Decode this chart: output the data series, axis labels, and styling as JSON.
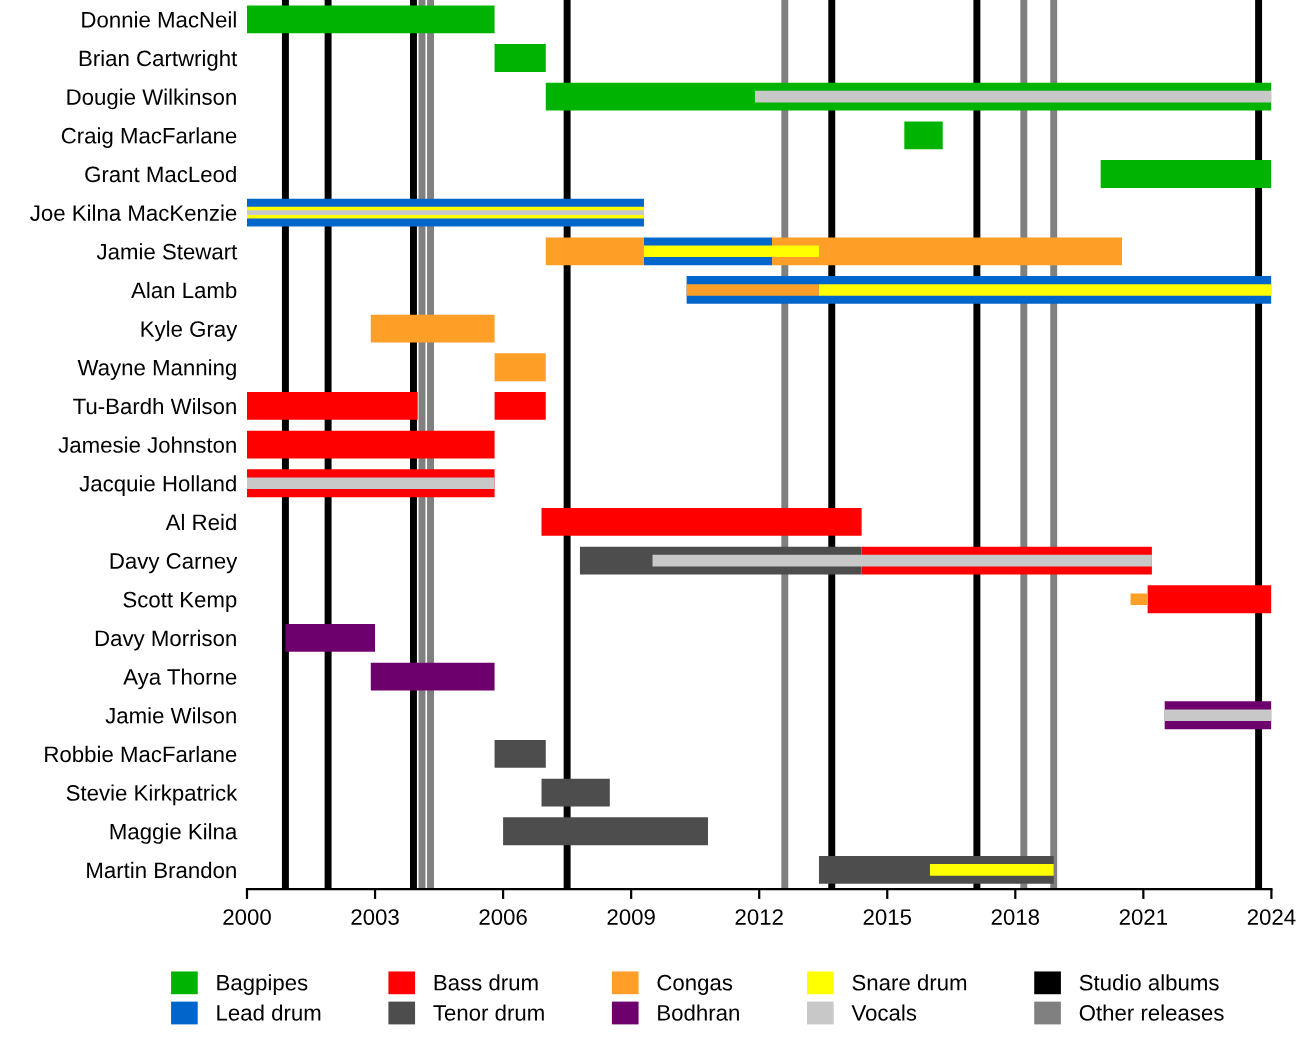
{
  "chart_data": {
    "type": "bar",
    "orientation": "horizontal",
    "legend": "bottom",
    "grid": false,
    "categories": [
      "Donnie MacNeil",
      "Brian Cartwright",
      "Dougie Wilkinson",
      "Craig MacFarlane",
      "Grant MacLeod",
      "Joe Kilna MacKenzie",
      "Jamie Stewart",
      "Alan Lamb",
      "Kyle Gray",
      "Wayne Manning",
      "Tu-Bardh Wilson",
      "Jamesie Johnston",
      "Jacquie Holland",
      "Al Reid",
      "Davy Carney",
      "Scott Kemp",
      "Davy Morrison",
      "Aya Thorne",
      "Jamie Wilson",
      "Robbie MacFarlane",
      "Stevie Kirkpatrick",
      "Maggie Kilna",
      "Martin Brandon"
    ],
    "xlim": [
      2000,
      2024
    ],
    "xticks": [
      2000,
      2003,
      2006,
      2009,
      2012,
      2015,
      2018,
      2021,
      2024
    ],
    "series": [
      {
        "name": "Bagpipes",
        "color": "#00b300",
        "base": [
          2000,
          2005.8,
          2007,
          2015.4,
          2020,
          null,
          null,
          null,
          null,
          null,
          null,
          null,
          null,
          null,
          null,
          null,
          null,
          null,
          null,
          null,
          null,
          null,
          null
        ],
        "values": [
          5.8,
          1.2,
          17,
          0.9,
          4,
          null,
          null,
          null,
          null,
          null,
          null,
          null,
          null,
          null,
          null,
          null,
          null,
          null,
          null,
          null,
          null,
          null,
          null
        ]
      },
      {
        "name": "Lead drum",
        "color": "#0066cc",
        "base": [
          null,
          null,
          null,
          null,
          null,
          2000,
          2009.3,
          2010.3,
          null,
          null,
          null,
          null,
          null,
          null,
          null,
          null,
          null,
          null,
          null,
          null,
          null,
          null,
          null
        ],
        "values": [
          null,
          null,
          null,
          null,
          null,
          9.3,
          3.0,
          13.7,
          null,
          null,
          null,
          null,
          null,
          null,
          null,
          null,
          null,
          null,
          null,
          null,
          null,
          null,
          null
        ]
      },
      {
        "name": "Bass drum",
        "color": "#ff0000",
        "base": [
          null,
          null,
          null,
          null,
          null,
          null,
          null,
          null,
          null,
          null,
          2000,
          2000,
          2000,
          2006.9,
          2014.4,
          2021.1,
          null,
          null,
          null,
          null,
          null,
          null,
          null
        ],
        "values": [
          null,
          null,
          null,
          null,
          null,
          null,
          null,
          null,
          null,
          null,
          4.0,
          5.8,
          5.8,
          7.5,
          6.8,
          2.9,
          null,
          null,
          null,
          null,
          null,
          null,
          null
        ]
      },
      {
        "name": "Tenor drum",
        "color": "#4d4d4d",
        "base": [
          null,
          null,
          null,
          null,
          null,
          null,
          null,
          null,
          null,
          null,
          null,
          null,
          null,
          null,
          2007.8,
          null,
          null,
          null,
          null,
          2005.8,
          2006.9,
          2006,
          2013.4
        ],
        "values": [
          null,
          null,
          null,
          null,
          null,
          null,
          null,
          null,
          null,
          null,
          null,
          null,
          null,
          null,
          6.6,
          null,
          null,
          null,
          null,
          1.2,
          1.6,
          4.8,
          5.5
        ]
      },
      {
        "name": "Congas",
        "color": "#ff9f27",
        "base": [
          null,
          null,
          null,
          null,
          null,
          null,
          2007,
          null,
          2002.9,
          2005.8,
          null,
          null,
          null,
          null,
          null,
          2020.7,
          null,
          null,
          null,
          null,
          null,
          null,
          null
        ],
        "values": [
          null,
          null,
          null,
          null,
          null,
          null,
          2.3,
          null,
          2.9,
          1.2,
          null,
          null,
          null,
          null,
          null,
          0.4,
          null,
          null,
          null,
          null,
          null,
          null,
          null
        ]
      },
      {
        "name": "Bodhran",
        "color": "#6e006e",
        "base": [
          null,
          null,
          null,
          null,
          null,
          null,
          null,
          null,
          null,
          null,
          null,
          null,
          null,
          null,
          null,
          null,
          2000.9,
          2002.9,
          2021.5,
          null,
          null,
          null,
          null
        ],
        "values": [
          null,
          null,
          null,
          null,
          null,
          null,
          null,
          null,
          null,
          null,
          null,
          null,
          null,
          null,
          null,
          null,
          2.1,
          2.9,
          2.5,
          null,
          null,
          null,
          null
        ]
      },
      {
        "color": "#ff0000",
        "base": [
          null,
          null,
          null,
          null,
          null,
          null,
          null,
          null,
          null,
          null,
          2005.8,
          null,
          null,
          null,
          null,
          null,
          null,
          null,
          null,
          null,
          null,
          null,
          null
        ],
        "values": [
          null,
          null,
          null,
          null,
          null,
          null,
          null,
          null,
          null,
          null,
          1.2,
          null,
          null,
          null,
          null,
          null,
          null,
          null,
          null,
          null,
          null,
          null,
          null
        ]
      },
      {
        "color": "#ff9f27",
        "base": [
          null,
          null,
          null,
          null,
          null,
          null,
          2012.3,
          null,
          null,
          null,
          null,
          null,
          null,
          null,
          null,
          null,
          null,
          null,
          null,
          null,
          null,
          null,
          null
        ],
        "values": [
          null,
          null,
          null,
          null,
          null,
          null,
          8.2,
          null,
          null,
          null,
          null,
          null,
          null,
          null,
          null,
          null,
          null,
          null,
          null,
          null,
          null,
          null,
          null
        ]
      },
      {
        "name": "Snare drum",
        "color": "#ffff00",
        "base": [
          null,
          null,
          null,
          null,
          null,
          2000,
          2009.3,
          2013.4,
          null,
          null,
          null,
          null,
          null,
          null,
          null,
          null,
          null,
          null,
          null,
          null,
          null,
          null,
          2016
        ],
        "values": [
          null,
          null,
          null,
          null,
          null,
          9.3,
          4.1,
          10.6,
          null,
          null,
          null,
          null,
          null,
          null,
          null,
          null,
          null,
          null,
          null,
          null,
          null,
          null,
          2.9
        ]
      },
      {
        "color": "#ff9f27",
        "base": [
          null,
          null,
          null,
          null,
          null,
          null,
          null,
          2010.3,
          null,
          null,
          null,
          null,
          null,
          null,
          null,
          null,
          null,
          null,
          null,
          null,
          null,
          null,
          null
        ],
        "values": [
          null,
          null,
          null,
          null,
          null,
          null,
          null,
          3.1,
          null,
          null,
          null,
          null,
          null,
          null,
          null,
          null,
          null,
          null,
          null,
          null,
          null,
          null,
          null
        ]
      },
      {
        "name": "Vocals",
        "color": "#c8c8c8",
        "base": [
          null,
          null,
          2011.9,
          null,
          null,
          2000,
          null,
          null,
          null,
          null,
          null,
          null,
          2000,
          null,
          2009.5,
          null,
          null,
          null,
          2021.5,
          null,
          null,
          null,
          null
        ],
        "values": [
          null,
          null,
          12.1,
          null,
          null,
          9.3,
          null,
          null,
          null,
          null,
          null,
          null,
          5.8,
          null,
          11.7,
          null,
          null,
          null,
          2.5,
          null,
          null,
          null,
          null
        ]
      }
    ],
    "ref_lines": [
      {
        "axis": "x",
        "value": 2000.9,
        "label": "Studio albums",
        "color": "#000000"
      },
      {
        "axis": "x",
        "value": 2001.9,
        "color": "#000000"
      },
      {
        "axis": "x",
        "value": 2003.9,
        "color": "#000000"
      },
      {
        "axis": "x",
        "value": 2007.5,
        "color": "#000000"
      },
      {
        "axis": "x",
        "value": 2013.7,
        "color": "#000000"
      },
      {
        "axis": "x",
        "value": 2017.1,
        "color": "#000000"
      },
      {
        "axis": "x",
        "value": 2023.7,
        "color": "#000000"
      },
      {
        "axis": "x",
        "value": 2004.1,
        "label": "Other releases",
        "color": "#808080"
      },
      {
        "axis": "x",
        "value": 2004.3,
        "color": "#808080"
      },
      {
        "axis": "x",
        "value": 2012.6,
        "color": "#808080"
      },
      {
        "axis": "x",
        "value": 2018.2,
        "color": "#808080"
      },
      {
        "axis": "x",
        "value": 2018.9,
        "color": "#808080"
      }
    ]
  }
}
